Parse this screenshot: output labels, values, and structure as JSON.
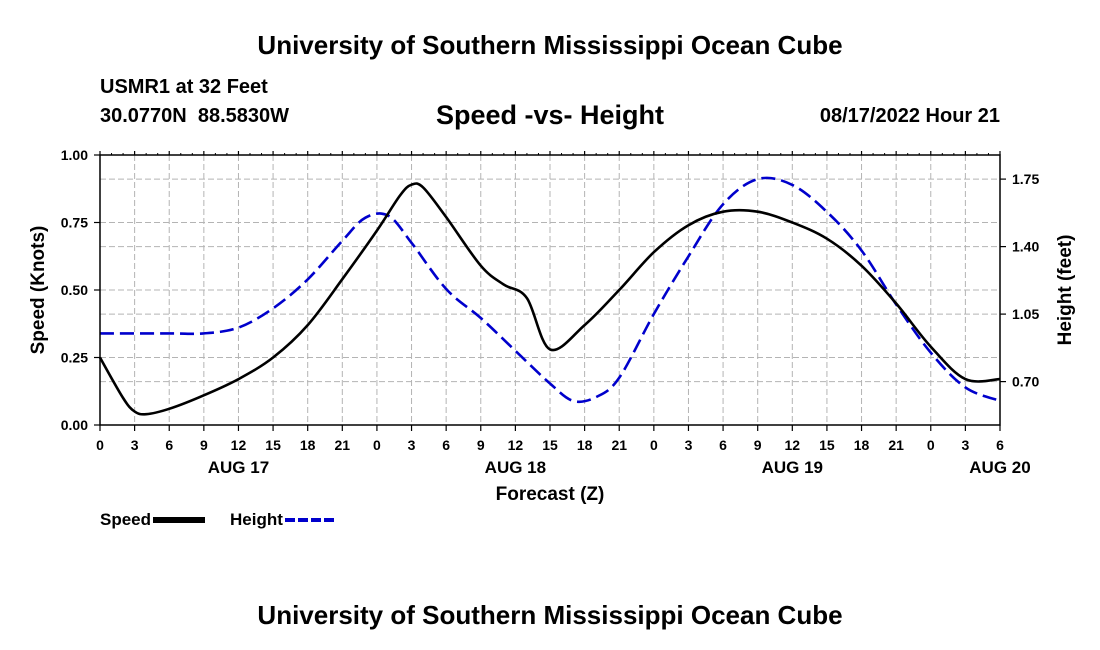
{
  "header": {
    "title": "University of Southern Mississippi Ocean Cube",
    "station": "USMR1 at 32 Feet",
    "latitude": "30.0770N",
    "longitude": "88.5830W",
    "chart_title": "Speed -vs- Height",
    "datetime": "08/17/2022 Hour 21"
  },
  "footer": {
    "title": "University of Southern Mississippi Ocean Cube"
  },
  "legend": [
    {
      "label": "Speed",
      "color": "#000000",
      "style": "solid"
    },
    {
      "label": "Height",
      "color": "#0000cc",
      "style": "dashed"
    }
  ],
  "chart_data": {
    "type": "line",
    "title": "Speed -vs- Height",
    "xlabel": "Forecast (Z)",
    "ylabel": "Speed (Knots)",
    "y2label": "Height (feet)",
    "x_unit": "forecast hour (0 = 00Z AUG 17)",
    "xlim": [
      0,
      78
    ],
    "ylim": [
      0,
      1.0
    ],
    "y2lim": [
      0.475,
      1.875
    ],
    "x_tick_step": 3,
    "x_tick_labels": [
      "0",
      "3",
      "6",
      "9",
      "12",
      "15",
      "18",
      "21",
      "0",
      "3",
      "6",
      "9",
      "12",
      "15",
      "18",
      "21",
      "0",
      "3",
      "6",
      "9",
      "12",
      "15",
      "18",
      "21",
      "0",
      "3",
      "6"
    ],
    "y_ticks": [
      0,
      0.25,
      0.5,
      0.75,
      1.0
    ],
    "y_tick_labels": [
      "0.00",
      "0.25",
      "0.50",
      "0.75",
      "1.00"
    ],
    "y2_ticks": [
      0.7,
      1.05,
      1.4,
      1.75
    ],
    "y2_tick_labels": [
      "0.70",
      "1.05",
      "1.40",
      "1.75"
    ],
    "day_labels": [
      {
        "text": "AUG 17",
        "x": 12
      },
      {
        "text": "AUG 18",
        "x": 36
      },
      {
        "text": "AUG 19",
        "x": 60
      },
      {
        "text": "AUG 20",
        "x": 78
      }
    ],
    "grid": true,
    "series": [
      {
        "name": "Speed",
        "axis": "left",
        "color": "#000000",
        "dash": "solid",
        "x": [
          0,
          2,
          3,
          4,
          6,
          9,
          12,
          15,
          18,
          21,
          24,
          26,
          27,
          28,
          30,
          33,
          35,
          37,
          39,
          42,
          45,
          48,
          51,
          54,
          57,
          60,
          63,
          66,
          69,
          72,
          75,
          78
        ],
        "values": [
          0.25,
          0.1,
          0.05,
          0.04,
          0.06,
          0.11,
          0.17,
          0.25,
          0.37,
          0.54,
          0.72,
          0.85,
          0.89,
          0.88,
          0.77,
          0.59,
          0.52,
          0.47,
          0.28,
          0.37,
          0.5,
          0.64,
          0.74,
          0.79,
          0.79,
          0.75,
          0.69,
          0.59,
          0.45,
          0.29,
          0.17,
          0.17
        ]
      },
      {
        "name": "Height",
        "axis": "right",
        "color": "#0000cc",
        "dash": "dashed",
        "x": [
          0,
          6,
          9,
          12,
          15,
          18,
          21,
          23,
          25,
          27,
          30,
          33,
          36,
          39,
          41,
          43,
          45,
          48,
          51,
          54,
          57,
          60,
          63,
          66,
          69,
          72,
          75,
          78
        ],
        "values": [
          0.95,
          0.95,
          0.95,
          0.98,
          1.08,
          1.23,
          1.43,
          1.55,
          1.56,
          1.42,
          1.18,
          1.03,
          0.86,
          0.69,
          0.6,
          0.62,
          0.72,
          1.05,
          1.35,
          1.62,
          1.75,
          1.72,
          1.58,
          1.38,
          1.1,
          0.85,
          0.67,
          0.6
        ]
      }
    ]
  }
}
